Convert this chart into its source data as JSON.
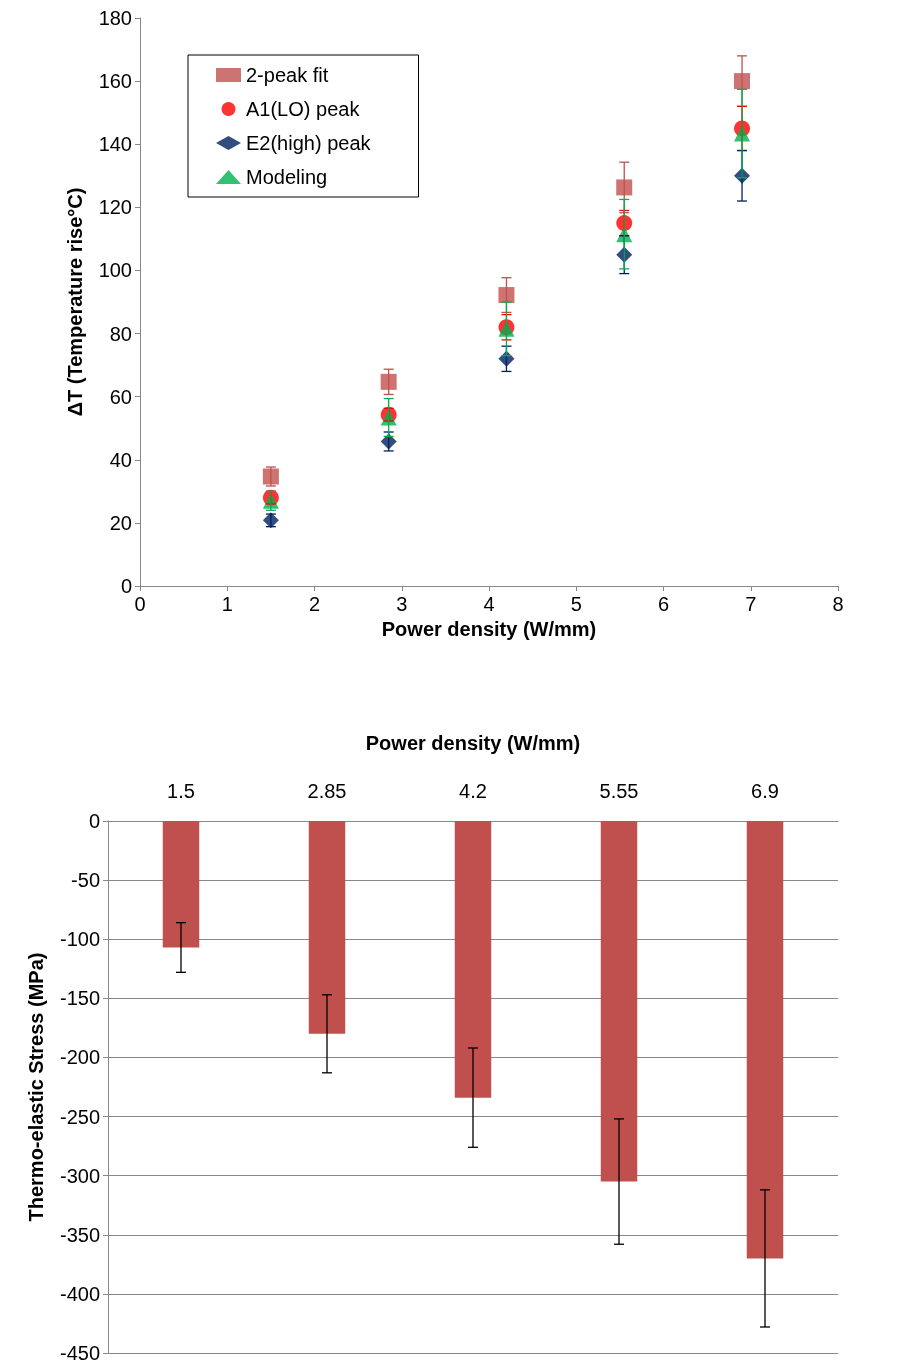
{
  "chart_data": [
    {
      "type": "scatter",
      "xlabel": "Power density (W/mm)",
      "ylabel": "ΔT (Temperature rise°C)",
      "xlim": [
        0,
        8
      ],
      "xticks": [
        0,
        1,
        2,
        3,
        4,
        5,
        6,
        7,
        8
      ],
      "ylim": [
        0,
        180
      ],
      "yticks": [
        0,
        20,
        40,
        60,
        80,
        100,
        120,
        140,
        160,
        180
      ],
      "grid": false,
      "legend": "top left",
      "x": [
        1.5,
        2.85,
        4.2,
        5.55,
        6.9
      ],
      "series": [
        {
          "name": "2-peak fit",
          "color": "#c0504d",
          "marker": "square",
          "values": [
            34.7,
            64.7,
            92.2,
            126.3,
            160
          ],
          "errors": [
            3,
            4,
            5.5,
            8,
            8
          ]
        },
        {
          "name": "A1(LO) peak",
          "color": "#ff0000",
          "marker": "circle",
          "values": [
            28,
            54.3,
            82,
            115,
            145
          ],
          "errors": [
            2,
            2,
            4,
            4,
            7
          ]
        },
        {
          "name": "E2(high) peak",
          "color": "#002060",
          "marker": "diamond",
          "values": [
            20.8,
            45.8,
            72,
            105,
            130
          ],
          "errors": [
            2,
            3,
            4,
            6,
            8
          ]
        },
        {
          "name": "Modeling",
          "color": "#00b050",
          "marker": "triangle",
          "values": [
            27,
            53.4,
            81.5,
            111.5,
            143.4
          ],
          "errors": [
            3,
            6,
            8.5,
            11,
            14
          ]
        }
      ]
    },
    {
      "type": "bar",
      "xlabel": "Power density (W/mm)",
      "ylabel": "Thermo-elastic Stress (MPa)",
      "categories": [
        "1.5",
        "2.85",
        "4.2",
        "5.55",
        "6.9"
      ],
      "ylim": [
        -450,
        0
      ],
      "yticks": [
        -450,
        -400,
        -350,
        -300,
        -250,
        -200,
        -150,
        -100,
        -50,
        0
      ],
      "grid": "y",
      "series": [
        {
          "color": "#c0504d",
          "values": [
            -107,
            -180,
            -234,
            -305,
            -370
          ],
          "errors": [
            21,
            33,
            42,
            53,
            58
          ]
        }
      ]
    }
  ]
}
